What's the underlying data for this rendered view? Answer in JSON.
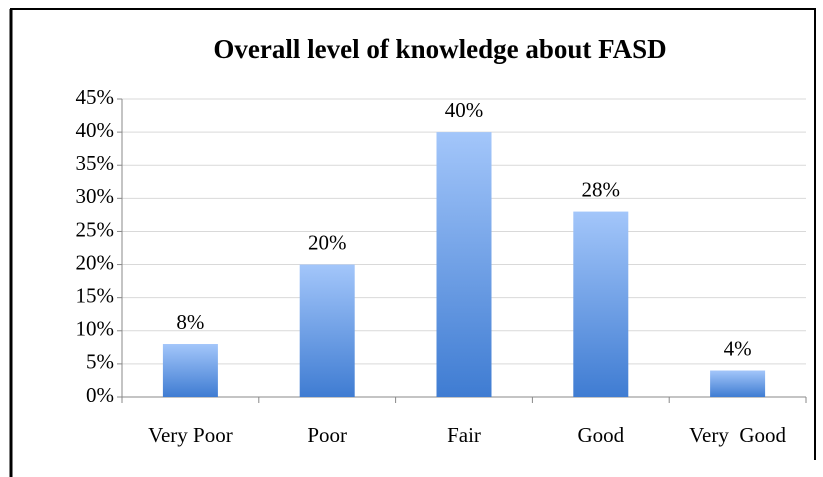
{
  "chart_data": {
    "type": "bar",
    "title": "Overall level of knowledge about FASD",
    "categories": [
      "Very Poor",
      "Poor",
      "Fair",
      "Good",
      "Very  Good"
    ],
    "values": [
      8,
      20,
      40,
      28,
      4
    ],
    "value_labels": [
      "8%",
      "20%",
      "40%",
      "28%",
      "4%"
    ],
    "color": "#5b93e0",
    "ylim": [
      0,
      45
    ],
    "yticks": [
      {
        "value": 0,
        "label": "0%"
      },
      {
        "value": 5,
        "label": "5%"
      },
      {
        "value": 10,
        "label": "10%"
      },
      {
        "value": 15,
        "label": "15%"
      },
      {
        "value": 20,
        "label": "20%"
      },
      {
        "value": 25,
        "label": "25%"
      },
      {
        "value": 30,
        "label": "30%"
      },
      {
        "value": 35,
        "label": "35%"
      },
      {
        "value": 40,
        "label": "40%"
      },
      {
        "value": 45,
        "label": "45%"
      }
    ],
    "grid": true
  }
}
